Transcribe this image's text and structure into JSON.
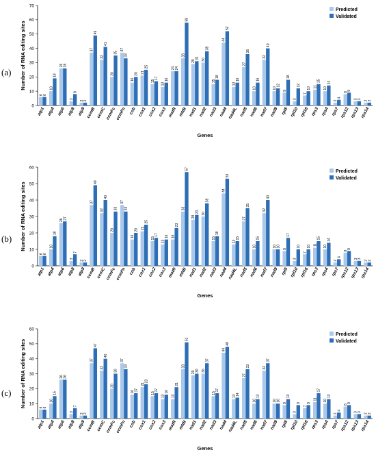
{
  "colors": {
    "predicted": "#a9c8ea",
    "validated": "#2e6eb5"
  },
  "chart_data": [
    {
      "type": "bar",
      "panel_label": "(a)",
      "xlabel": "Genes",
      "ylabel": "Number of RNA editing sites",
      "ylim": [
        0,
        70
      ],
      "yticks": [
        0,
        10,
        20,
        30,
        40,
        50,
        60,
        70
      ],
      "legend": "top-right",
      "categories": [
        "atp1",
        "atp4",
        "atp6",
        "atp8",
        "atp9",
        "ccmB",
        "ccmC",
        "ccmFc",
        "ccmFn",
        "cob",
        "cox1",
        "cox2",
        "cox3",
        "matR",
        "mttB",
        "nad1",
        "nad2",
        "nad3",
        "nad4",
        "nad4L",
        "nad5",
        "nad6",
        "nad7",
        "nad9",
        "rpl5",
        "rpl10",
        "rpl16",
        "rps3",
        "rps4",
        "rps7",
        "rps12",
        "rps13",
        "rps14"
      ],
      "series": [
        {
          "name": "Predicted",
          "values": [
            6,
            10,
            26,
            3,
            2,
            37,
            32,
            20,
            37,
            16,
            21,
            15,
            13,
            24,
            33,
            29,
            30,
            15,
            44,
            13,
            27,
            10,
            32,
            10,
            9,
            3,
            7,
            11,
            10,
            2,
            8,
            3,
            2
          ]
        },
        {
          "name": "Validated",
          "values": [
            6,
            19,
            26,
            8,
            2,
            49,
            41,
            35,
            33,
            20,
            25,
            17,
            16,
            24,
            58,
            31,
            38,
            18,
            52,
            16,
            36,
            16,
            40,
            12,
            18,
            12,
            10,
            15,
            14,
            4,
            9,
            3,
            2
          ]
        }
      ]
    },
    {
      "type": "bar",
      "panel_label": "(b)",
      "xlabel": "Genes",
      "ylabel": "Number of RNA editing sites",
      "ylim": [
        0,
        60
      ],
      "yticks": [
        0,
        10,
        20,
        30,
        40,
        50,
        60
      ],
      "legend": "top-right",
      "categories": [
        "atp1",
        "atp4",
        "atp6",
        "atp8",
        "atp9",
        "ccmB",
        "ccmC",
        "ccmFc",
        "ccmFn",
        "cob",
        "cox1",
        "cox2",
        "cox3",
        "matR",
        "mttB",
        "nad1",
        "nad2",
        "nad3",
        "nad4",
        "nad4L",
        "nad5",
        "nad6",
        "nad7",
        "nad9",
        "rpl5",
        "rpl10",
        "rpl16",
        "rps3",
        "rps4",
        "rps7",
        "rps12",
        "rps13",
        "rps14"
      ],
      "series": [
        {
          "name": "Predicted",
          "values": [
            6,
            10,
            26,
            3,
            2,
            37,
            32,
            20,
            37,
            16,
            21,
            15,
            13,
            16,
            33,
            28,
            30,
            15,
            44,
            13,
            27,
            10,
            32,
            10,
            9,
            3,
            7,
            11,
            10,
            2,
            8,
            3,
            2
          ]
        },
        {
          "name": "Validated",
          "values": [
            6,
            18,
            27,
            7,
            2,
            49,
            40,
            33,
            33,
            20,
            25,
            17,
            16,
            23,
            57,
            31,
            38,
            18,
            53,
            15,
            35,
            15,
            40,
            10,
            17,
            10,
            10,
            15,
            14,
            4,
            9,
            3,
            2
          ]
        }
      ]
    },
    {
      "type": "bar",
      "panel_label": "(c)",
      "xlabel": "Genes",
      "ylabel": "Number of RNA editing sites",
      "ylim": [
        0,
        60
      ],
      "yticks": [
        0,
        10,
        20,
        30,
        40,
        50,
        60
      ],
      "legend": "top-right",
      "categories": [
        "atp1",
        "atp4",
        "atp6",
        "atp8",
        "atp9",
        "ccmB",
        "ccmC",
        "ccmFc",
        "ccmFn",
        "cob",
        "cox1",
        "cox2",
        "cox3",
        "matR",
        "mttB",
        "nad1",
        "nad2",
        "nad3",
        "nad4",
        "nad4L",
        "nad5",
        "nad6",
        "nad7",
        "nad9",
        "rpl5",
        "rpl10",
        "rpl16",
        "rps3",
        "rps4",
        "rps7",
        "rps12",
        "rps13",
        "rps14"
      ],
      "series": [
        {
          "name": "Predicted",
          "values": [
            6,
            10,
            26,
            3,
            2,
            37,
            32,
            20,
            37,
            16,
            21,
            15,
            13,
            13,
            33,
            29,
            30,
            15,
            44,
            13,
            27,
            10,
            32,
            10,
            9,
            3,
            7,
            11,
            10,
            2,
            8,
            3,
            2
          ]
        },
        {
          "name": "Validated",
          "values": [
            6,
            15,
            26,
            7,
            2,
            47,
            40,
            30,
            33,
            17,
            23,
            17,
            16,
            21,
            51,
            30,
            37,
            17,
            48,
            14,
            33,
            13,
            37,
            10,
            13,
            9,
            9,
            17,
            13,
            4,
            9,
            3,
            2
          ]
        }
      ]
    }
  ]
}
